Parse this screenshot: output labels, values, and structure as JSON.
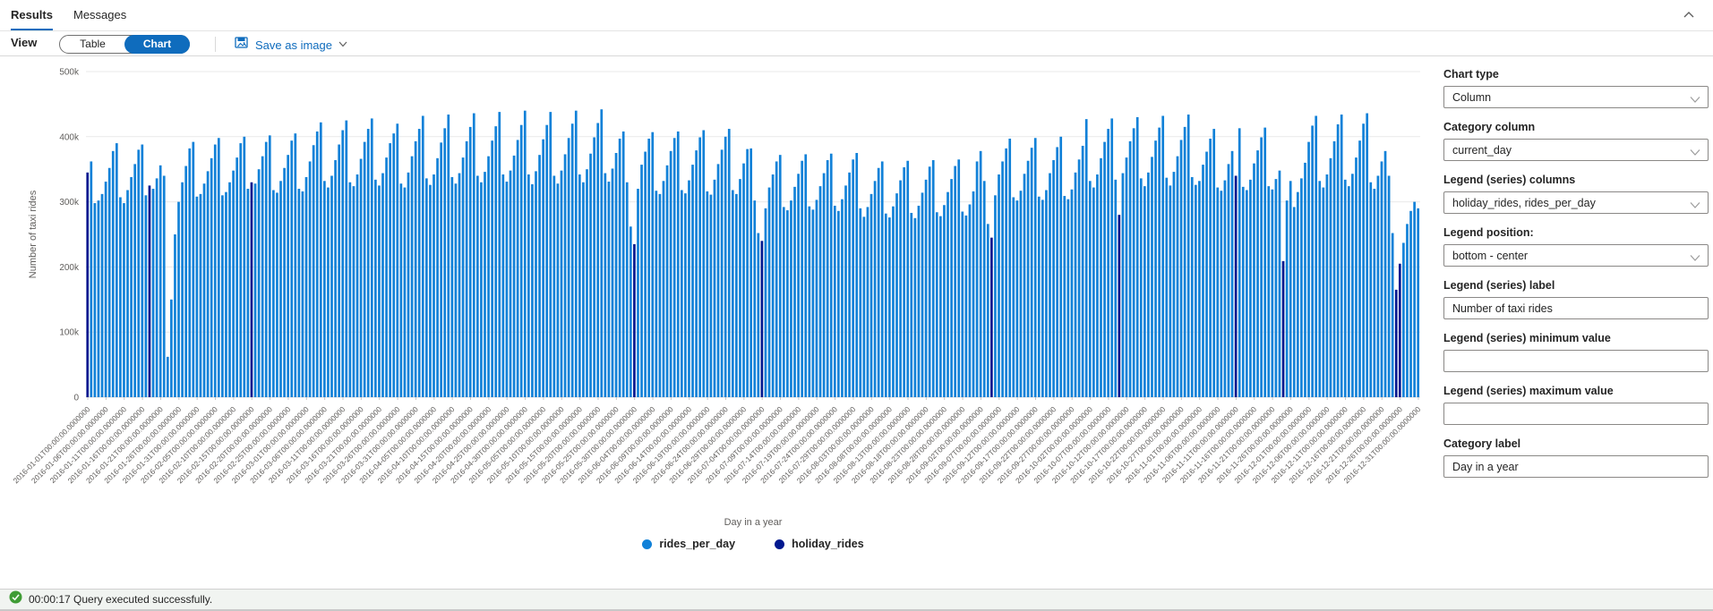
{
  "tabs": {
    "results": "Results",
    "messages": "Messages"
  },
  "toolbar": {
    "view_label": "View",
    "table_label": "Table",
    "chart_label": "Chart",
    "save_as_image_label": "Save as image"
  },
  "panel": {
    "fields": [
      {
        "label": "Chart type",
        "type": "select",
        "value": "Column"
      },
      {
        "label": "Category column",
        "type": "select",
        "value": "current_day"
      },
      {
        "label": "Legend (series) columns",
        "type": "select",
        "value": "holiday_rides, rides_per_day"
      },
      {
        "label": "Legend position:",
        "type": "select",
        "value": "bottom - center"
      },
      {
        "label": "Legend (series) label",
        "type": "input",
        "value": "Number of taxi rides"
      },
      {
        "label": "Legend (series) minimum value",
        "type": "input",
        "value": ""
      },
      {
        "label": "Legend (series) maximum value",
        "type": "input",
        "value": ""
      },
      {
        "label": "Category label",
        "type": "input",
        "value": "Day in a year"
      }
    ]
  },
  "status": {
    "message": "00:00:17 Query executed successfully.",
    "success_color": "#3f9c35"
  },
  "chart_data": {
    "type": "bar",
    "title": "",
    "xlabel": "Day in a year",
    "ylabel": "Number of taxi rides",
    "ylim": [
      0,
      500000
    ],
    "grid": true,
    "legend_position": "bottom-center",
    "y_tick_labels": [
      "0",
      "100k",
      "200k",
      "300k",
      "400k",
      "500k"
    ],
    "x_start_date": "2016-01-01",
    "x_tick_interval_days": 5,
    "x_tick_time_suffix": "T00:00:00.0000000",
    "x_tick_dates": [
      "2016-01-01",
      "2016-01-06",
      "2016-01-11",
      "2016-01-16",
      "2016-01-21",
      "2016-01-26",
      "2016-01-31",
      "2016-02-05",
      "2016-02-10",
      "2016-02-15",
      "2016-02-20",
      "2016-02-25",
      "2016-03-01",
      "2016-03-06",
      "2016-03-11",
      "2016-03-16",
      "2016-03-21",
      "2016-03-26",
      "2016-03-31",
      "2016-04-05",
      "2016-04-10",
      "2016-04-15",
      "2016-04-20",
      "2016-04-25",
      "2016-04-30",
      "2016-05-05",
      "2016-05-10",
      "2016-05-15",
      "2016-05-20",
      "2016-05-25",
      "2016-05-30",
      "2016-06-04",
      "2016-06-09",
      "2016-06-14",
      "2016-06-19",
      "2016-06-24",
      "2016-06-29",
      "2016-07-04",
      "2016-07-09",
      "2016-07-14",
      "2016-07-19",
      "2016-07-24",
      "2016-07-29",
      "2016-08-03",
      "2016-08-08",
      "2016-08-13",
      "2016-08-18",
      "2016-08-23",
      "2016-08-28",
      "2016-09-02",
      "2016-09-07",
      "2016-09-12",
      "2016-09-17",
      "2016-09-22",
      "2016-09-27",
      "2016-10-02",
      "2016-10-07",
      "2016-10-12",
      "2016-10-17",
      "2016-10-22",
      "2016-10-27",
      "2016-11-01",
      "2016-11-06",
      "2016-11-11",
      "2016-11-16",
      "2016-11-21",
      "2016-11-26",
      "2016-12-01",
      "2016-12-06",
      "2016-12-11",
      "2016-12-16",
      "2016-12-21",
      "2016-12-26",
      "2016-12-31"
    ],
    "series": [
      {
        "name": "rides_per_day",
        "color": "#1181d8",
        "unit": "thousand rides",
        "values_k": [
          345,
          362,
          298,
          302,
          312,
          331,
          352,
          378,
          390,
          307,
          298,
          318,
          338,
          358,
          380,
          388,
          310,
          325,
          320,
          336,
          356,
          340,
          62,
          150,
          250,
          300,
          330,
          355,
          382,
          392,
          308,
          312,
          328,
          347,
          367,
          388,
          398,
          310,
          315,
          330,
          348,
          368,
          390,
          400,
          320,
          330,
          328,
          350,
          370,
          392,
          402,
          318,
          314,
          332,
          352,
          372,
          394,
          405,
          320,
          316,
          338,
          362,
          387,
          408,
          422,
          332,
          322,
          340,
          364,
          388,
          410,
          425,
          330,
          324,
          342,
          366,
          392,
          412,
          428,
          334,
          325,
          344,
          368,
          390,
          405,
          420,
          328,
          322,
          345,
          370,
          393,
          412,
          432,
          336,
          326,
          342,
          367,
          391,
          413,
          434,
          338,
          328,
          344,
          368,
          393,
          415,
          436,
          340,
          330,
          346,
          370,
          394,
          416,
          438,
          342,
          331,
          348,
          371,
          395,
          418,
          440,
          342,
          327,
          347,
          372,
          396,
          418,
          438,
          340,
          328,
          348,
          373,
          398,
          420,
          440,
          342,
          330,
          350,
          374,
          399,
          421,
          442,
          344,
          331,
          351,
          375,
          397,
          408,
          330,
          262,
          235,
          320,
          357,
          377,
          397,
          407,
          317,
          312,
          332,
          356,
          378,
          398,
          408,
          318,
          313,
          333,
          357,
          379,
          399,
          410,
          316,
          311,
          334,
          358,
          380,
          400,
          412,
          318,
          312,
          335,
          359,
          381,
          382,
          302,
          252,
          240,
          290,
          322,
          342,
          362,
          372,
          292,
          287,
          302,
          323,
          343,
          363,
          373,
          293,
          288,
          303,
          324,
          344,
          364,
          374,
          294,
          286,
          304,
          325,
          345,
          365,
          375,
          290,
          277,
          292,
          312,
          332,
          352,
          362,
          282,
          276,
          293,
          313,
          333,
          353,
          363,
          283,
          275,
          294,
          314,
          334,
          354,
          364,
          284,
          278,
          295,
          315,
          335,
          355,
          365,
          285,
          279,
          296,
          316,
          362,
          378,
          332,
          266,
          245,
          310,
          342,
          362,
          382,
          397,
          307,
          302,
          317,
          343,
          363,
          383,
          398,
          308,
          303,
          318,
          344,
          364,
          384,
          400,
          309,
          304,
          319,
          345,
          365,
          386,
          427,
          332,
          322,
          342,
          367,
          392,
          412,
          428,
          334,
          280,
          344,
          368,
          393,
          413,
          430,
          336,
          324,
          345,
          369,
          394,
          414,
          432,
          337,
          325,
          346,
          370,
          395,
          415,
          434,
          338,
          326,
          332,
          357,
          377,
          397,
          412,
          322,
          317,
          333,
          358,
          378,
          340,
          413,
          323,
          318,
          334,
          359,
          379,
          399,
          414,
          324,
          319,
          335,
          348,
          209,
          302,
          332,
          292,
          315,
          336,
          360,
          392,
          417,
          432,
          332,
          322,
          342,
          367,
          393,
          419,
          434,
          334,
          324,
          343,
          368,
          394,
          420,
          436,
          330,
          320,
          340,
          362,
          378,
          340,
          252,
          165,
          205,
          237,
          266,
          286,
          300,
          290
        ]
      },
      {
        "name": "holiday_rides",
        "color": "#00188f",
        "unit": "thousand rides",
        "values_k_by_date": {
          "2016-01-01": 345,
          "2016-01-18": 325,
          "2016-02-15": 330,
          "2016-05-30": 235,
          "2016-07-04": 240,
          "2016-09-05": 245,
          "2016-10-10": 280,
          "2016-11-11": 340,
          "2016-11-24": 209,
          "2016-12-25": 165,
          "2016-12-26": 205
        }
      }
    ]
  }
}
